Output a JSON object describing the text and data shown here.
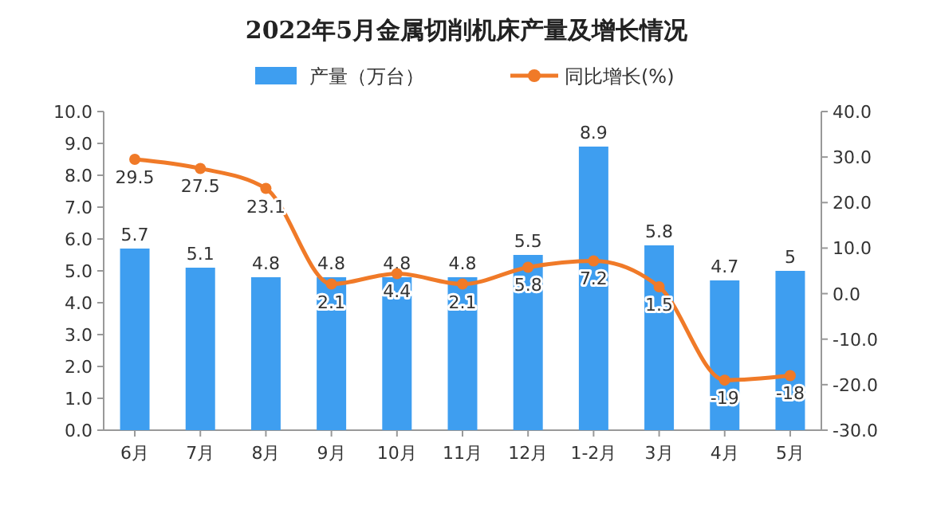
{
  "chart_data": {
    "type": "bar",
    "title": "2022年5月金属切削机床产量及增长情况",
    "categories": [
      "6月",
      "7月",
      "8月",
      "9月",
      "10月",
      "11月",
      "12月",
      "1-2月",
      "3月",
      "4月",
      "5月"
    ],
    "series": [
      {
        "name": "产量（万台）",
        "color": "#3e9ef0",
        "values": [
          5.7,
          5.1,
          4.8,
          4.8,
          4.8,
          4.8,
          5.5,
          8.9,
          5.8,
          4.7,
          5
        ]
      },
      {
        "name": "同比增长(%)",
        "type": "line",
        "axis": "y2",
        "color": "#f07a28",
        "values": [
          29.5,
          27.5,
          23.1,
          2.1,
          4.4,
          2.1,
          5.8,
          7.2,
          1.5,
          -19,
          -18
        ]
      }
    ],
    "ylim": [
      0,
      10
    ],
    "yticks": [
      {
        "value": 0,
        "label": "0.0"
      },
      {
        "value": 1,
        "label": "1.0"
      },
      {
        "value": 2,
        "label": "2.0"
      },
      {
        "value": 3,
        "label": "3.0"
      },
      {
        "value": 4,
        "label": "4.0"
      },
      {
        "value": 5,
        "label": "5.0"
      },
      {
        "value": 6,
        "label": "6.0"
      },
      {
        "value": 7,
        "label": "7.0"
      },
      {
        "value": 8,
        "label": "8.0"
      },
      {
        "value": 9,
        "label": "9.0"
      },
      {
        "value": 10,
        "label": "10.0"
      }
    ],
    "y2lim": [
      -30,
      40
    ],
    "y2ticks": [
      {
        "value": -30,
        "label": "-30.0"
      },
      {
        "value": -20,
        "label": "-20.0"
      },
      {
        "value": -10,
        "label": "-10.0"
      },
      {
        "value": 0,
        "label": "0.0"
      },
      {
        "value": 10,
        "label": "10.0"
      },
      {
        "value": 20,
        "label": "20.0"
      },
      {
        "value": 30,
        "label": "30.0"
      },
      {
        "value": 40,
        "label": "40.0"
      }
    ],
    "data_labels": true,
    "legend": "top",
    "marker": "circle",
    "line_style": "solid"
  }
}
